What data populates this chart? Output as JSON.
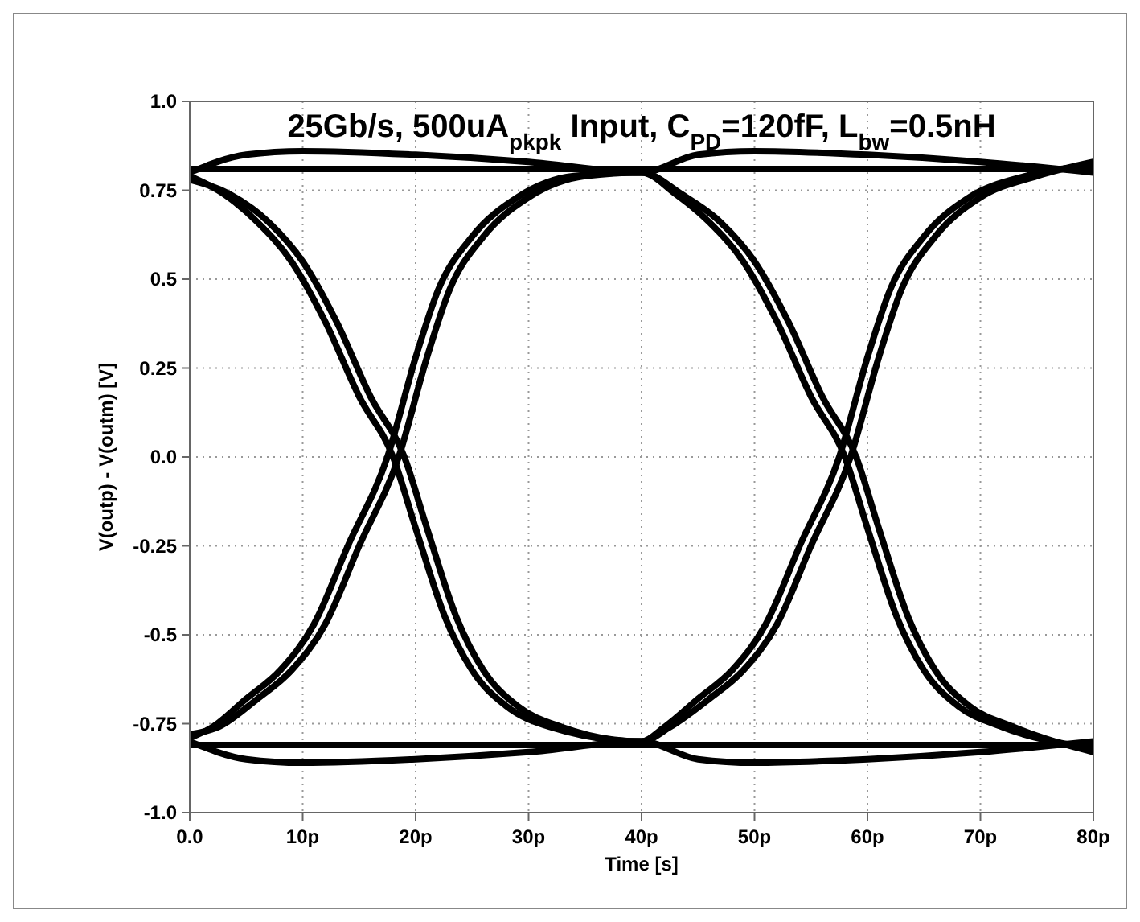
{
  "chart_data": {
    "type": "line",
    "title": "25Gb/s, 500uA$_{pkpk}$ Input, C$_{PD}$=120fF, L$_{bw}$=0.5nH",
    "xlabel": "Time [s]",
    "ylabel": "V(outp) - V(outm) [V]",
    "xlim": [
      0,
      80
    ],
    "ylim": [
      -1,
      1
    ],
    "xticks": [
      {
        "value": 0,
        "label": "0.0"
      },
      {
        "value": 10,
        "label": "10p"
      },
      {
        "value": 20,
        "label": "20p"
      },
      {
        "value": 30,
        "label": "30p"
      },
      {
        "value": 40,
        "label": "40p"
      },
      {
        "value": 50,
        "label": "50p"
      },
      {
        "value": 60,
        "label": "60p"
      },
      {
        "value": 70,
        "label": "70p"
      },
      {
        "value": 80,
        "label": "80p"
      }
    ],
    "yticks": [
      {
        "value": -1,
        "label": "-1.0"
      },
      -0.75,
      -0.5,
      -0.25,
      {
        "value": 0,
        "label": "0.0"
      },
      0.25,
      0.5,
      0.75,
      {
        "value": 1,
        "label": "1.0"
      }
    ],
    "grid": true,
    "series": [
      {
        "color": "#000000",
        "x": [
          0,
          3,
          6,
          9,
          12,
          15,
          18,
          20,
          22.6,
          25,
          28,
          32,
          40,
          42,
          45,
          48,
          51,
          54,
          57.5,
          60,
          62,
          65,
          69,
          74,
          80
        ],
        "values": [
          0.79,
          0.74,
          0.66,
          0.55,
          0.38,
          0.17,
          0,
          -0.2,
          -0.45,
          -0.6,
          -0.7,
          -0.76,
          -0.8,
          -0.76,
          -0.68,
          -0.6,
          -0.47,
          -0.25,
          0,
          0.28,
          0.47,
          0.62,
          0.73,
          0.79,
          0.82
        ]
      },
      {
        "color": "#000000",
        "x": [
          0,
          3.5,
          7,
          10,
          13,
          16,
          19,
          21,
          23.6,
          26,
          29,
          33,
          40,
          42.5,
          46,
          49,
          52,
          55,
          58.5,
          61,
          63,
          66,
          70,
          75,
          80
        ],
        "values": [
          0.78,
          0.74,
          0.66,
          0.55,
          0.38,
          0.17,
          0,
          -0.2,
          -0.45,
          -0.6,
          -0.7,
          -0.76,
          -0.8,
          -0.76,
          -0.68,
          -0.6,
          -0.47,
          -0.25,
          0,
          0.28,
          0.47,
          0.62,
          0.73,
          0.79,
          0.83
        ]
      },
      {
        "color": "#000000",
        "x": [
          0,
          2,
          5,
          8,
          11,
          14,
          17.5,
          20,
          22,
          25,
          29,
          34,
          40,
          43,
          46,
          49,
          52,
          55,
          58,
          60,
          62.6,
          65,
          68,
          72,
          80
        ],
        "values": [
          -0.79,
          -0.76,
          -0.68,
          -0.6,
          -0.47,
          -0.25,
          0,
          0.28,
          0.47,
          0.62,
          0.73,
          0.79,
          0.8,
          0.74,
          0.66,
          0.55,
          0.38,
          0.17,
          0,
          -0.2,
          -0.45,
          -0.6,
          -0.7,
          -0.76,
          -0.82
        ]
      },
      {
        "color": "#000000",
        "x": [
          0,
          2.5,
          6,
          9,
          12,
          15,
          18.5,
          21,
          23,
          26,
          30,
          35,
          40,
          43.5,
          47,
          50,
          53,
          56,
          59,
          61,
          63.6,
          66,
          69,
          73,
          80
        ],
        "values": [
          -0.78,
          -0.76,
          -0.68,
          -0.6,
          -0.47,
          -0.25,
          0,
          0.28,
          0.47,
          0.62,
          0.73,
          0.79,
          0.8,
          0.74,
          0.66,
          0.55,
          0.38,
          0.17,
          0,
          -0.2,
          -0.45,
          -0.6,
          -0.7,
          -0.76,
          -0.83
        ]
      },
      {
        "color": "#000000",
        "x": [
          0,
          40,
          80
        ],
        "values": [
          0.81,
          0.81,
          0.81
        ]
      },
      {
        "color": "#000000",
        "x": [
          0,
          5,
          10,
          20,
          30,
          40,
          45,
          50,
          60,
          70,
          80
        ],
        "values": [
          0.8,
          0.85,
          0.86,
          0.85,
          0.83,
          0.8,
          0.85,
          0.86,
          0.85,
          0.83,
          0.8
        ]
      },
      {
        "color": "#000000",
        "x": [
          0,
          40,
          80
        ],
        "values": [
          -0.81,
          -0.81,
          -0.81
        ]
      },
      {
        "color": "#000000",
        "x": [
          0,
          5,
          10,
          20,
          30,
          40,
          45,
          50,
          60,
          70,
          80
        ],
        "values": [
          -0.8,
          -0.85,
          -0.86,
          -0.85,
          -0.83,
          -0.8,
          -0.85,
          -0.86,
          -0.85,
          -0.83,
          -0.8
        ]
      }
    ]
  }
}
